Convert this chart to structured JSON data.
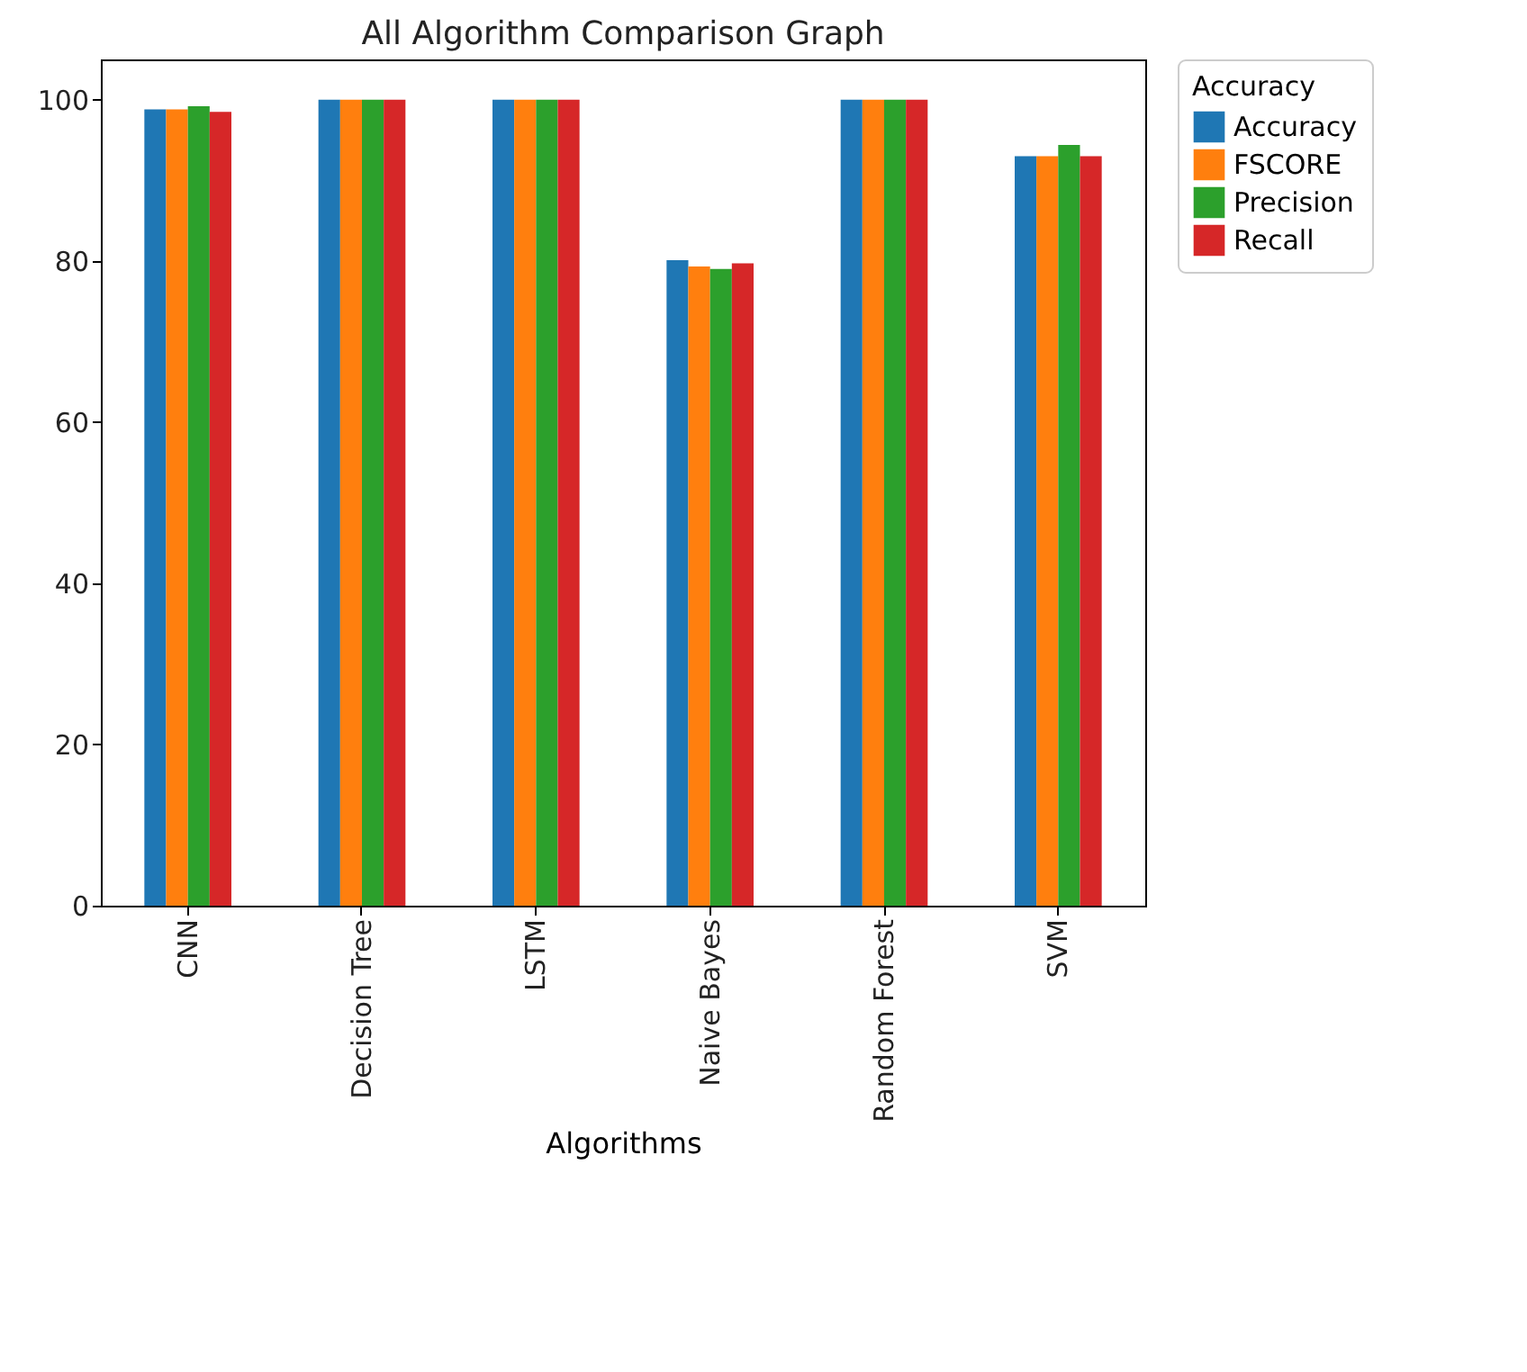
{
  "chart_data": {
    "type": "bar",
    "title": "All Algorithm Comparison Graph",
    "xlabel": "Algorithms",
    "legend_title": "Accuracy",
    "legend": "top right",
    "grid": false,
    "categories": [
      "CNN",
      "Decision Tree",
      "LSTM",
      "Naive Bayes",
      "Random Forest",
      "SVM"
    ],
    "series": [
      {
        "name": "Accuracy",
        "color": "#1f77b4",
        "values": [
          98.8,
          100,
          100,
          80.1,
          100,
          93.0
        ]
      },
      {
        "name": "FSCORE",
        "color": "#ff7f0e",
        "values": [
          98.8,
          100,
          100,
          79.3,
          100,
          93.0
        ]
      },
      {
        "name": "Precision",
        "color": "#2ca02c",
        "values": [
          99.2,
          100,
          100,
          79.0,
          100,
          94.4
        ]
      },
      {
        "name": "Recall",
        "color": "#d62728",
        "values": [
          98.5,
          100,
          100,
          79.7,
          100,
          93.0
        ]
      }
    ],
    "ylim": [
      0,
      105
    ],
    "yticks": [
      0,
      20,
      40,
      60,
      80,
      100
    ]
  }
}
